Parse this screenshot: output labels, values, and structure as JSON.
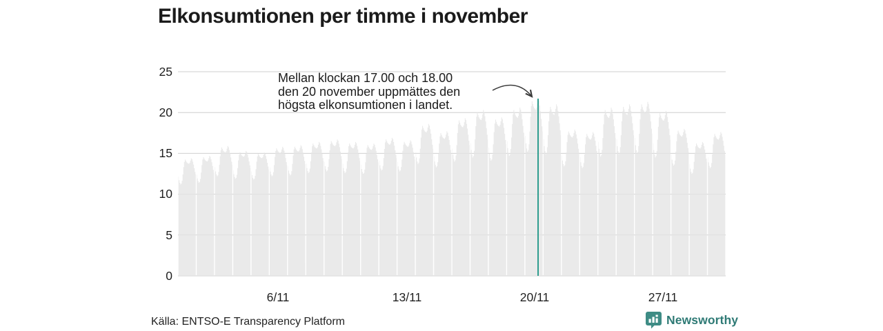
{
  "title": "Elkonsumtionen per timme i november",
  "source": "Källa: ENTSO-E Transparency Platform",
  "brand": {
    "name": "Newsworthy",
    "icon": "bar-chart-bubble-icon",
    "text_color": "#2e7a75",
    "icon_color": "#3e8c85"
  },
  "annotation": {
    "line1": "Mellan klockan 17.00 och 18.00",
    "line2": "den 20 november uppmättes den",
    "line3": "högsta elkonsumtionen i landet.",
    "arrow_color": "#3b3b3b"
  },
  "chart_data": {
    "type": "bar",
    "subtype": "hourly-consumption-profile",
    "title": "Elkonsumtionen per timme i november",
    "xlabel": "",
    "ylabel": "",
    "ylim": [
      0,
      25
    ],
    "y_ticks": [
      0,
      5,
      10,
      15,
      20,
      25
    ],
    "x_tick_labels": [
      "6/11",
      "13/11",
      "20/11",
      "27/11"
    ],
    "x_tick_days": [
      6,
      13,
      20,
      27
    ],
    "days_in_month": 30,
    "hours_per_day": 24,
    "grid": true,
    "legend": false,
    "bar_color": "#eaeaea",
    "grid_color": "#d8d8d8",
    "grid_overlay_color": "rgba(0,0,0,0.04)",
    "highlight_color": "#2f9d8e",
    "highlight": {
      "day": 20,
      "hour_start": 17,
      "hour_end": 18,
      "value": 21.7
    },
    "hour_profile": [
      0.3,
      0.16,
      0.06,
      0.0,
      0.03,
      0.14,
      0.38,
      0.66,
      0.86,
      0.95,
      0.9,
      0.85,
      0.82,
      0.8,
      0.79,
      0.83,
      0.91,
      1.0,
      0.96,
      0.87,
      0.76,
      0.62,
      0.48,
      0.38
    ],
    "days": [
      {
        "day": 1,
        "peak": 14.4,
        "min": 11.2
      },
      {
        "day": 2,
        "peak": 14.7,
        "min": 11.4
      },
      {
        "day": 3,
        "peak": 15.9,
        "min": 12.2
      },
      {
        "day": 4,
        "peak": 15.3,
        "min": 11.9
      },
      {
        "day": 5,
        "peak": 15.1,
        "min": 11.8
      },
      {
        "day": 6,
        "peak": 15.8,
        "min": 12.2
      },
      {
        "day": 7,
        "peak": 16.0,
        "min": 12.3
      },
      {
        "day": 8,
        "peak": 16.4,
        "min": 12.6
      },
      {
        "day": 9,
        "peak": 16.7,
        "min": 12.8
      },
      {
        "day": 10,
        "peak": 16.4,
        "min": 12.6
      },
      {
        "day": 11,
        "peak": 16.2,
        "min": 12.5
      },
      {
        "day": 12,
        "peak": 16.9,
        "min": 12.9
      },
      {
        "day": 13,
        "peak": 16.6,
        "min": 12.8
      },
      {
        "day": 14,
        "peak": 18.6,
        "min": 13.7
      },
      {
        "day": 15,
        "peak": 17.7,
        "min": 13.3
      },
      {
        "day": 16,
        "peak": 19.3,
        "min": 14.0
      },
      {
        "day": 17,
        "peak": 20.3,
        "min": 14.5
      },
      {
        "day": 18,
        "peak": 19.4,
        "min": 14.1
      },
      {
        "day": 19,
        "peak": 20.6,
        "min": 14.7
      },
      {
        "day": 20,
        "peak": 21.7,
        "min": 15.2
      },
      {
        "day": 21,
        "peak": 21.0,
        "min": 14.9
      },
      {
        "day": 22,
        "peak": 17.9,
        "min": 13.4
      },
      {
        "day": 23,
        "peak": 17.6,
        "min": 13.2
      },
      {
        "day": 24,
        "peak": 20.6,
        "min": 14.6
      },
      {
        "day": 25,
        "peak": 21.0,
        "min": 14.9
      },
      {
        "day": 26,
        "peak": 21.3,
        "min": 15.0
      },
      {
        "day": 27,
        "peak": 20.2,
        "min": 14.5
      },
      {
        "day": 28,
        "peak": 18.0,
        "min": 13.5
      },
      {
        "day": 29,
        "peak": 16.4,
        "min": 12.5
      },
      {
        "day": 30,
        "peak": 17.6,
        "min": 13.2
      }
    ]
  }
}
